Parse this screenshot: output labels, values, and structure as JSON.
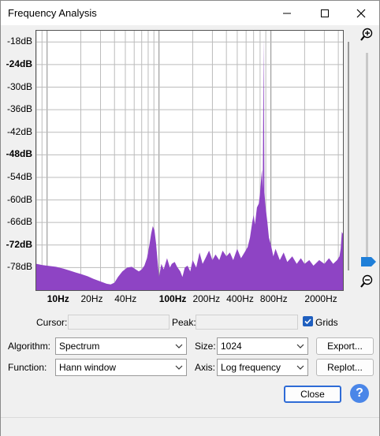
{
  "window": {
    "title": "Frequency Analysis"
  },
  "colors": {
    "spectrum_fill": "#8e44c4",
    "grid": "#bcbcbc",
    "accent": "#1f5fbf"
  },
  "chart_data": {
    "type": "area",
    "xscale": "log",
    "xlim": [
      8,
      4400
    ],
    "ylim": [
      -84,
      -15
    ],
    "y_ticks": [
      {
        "label": "-18dB",
        "value": -18,
        "bold": false
      },
      {
        "label": "-24dB",
        "value": -24,
        "bold": true
      },
      {
        "label": "-30dB",
        "value": -30,
        "bold": false
      },
      {
        "label": "-36dB",
        "value": -36,
        "bold": false
      },
      {
        "label": "-42dB",
        "value": -42,
        "bold": false
      },
      {
        "label": "-48dB",
        "value": -48,
        "bold": true
      },
      {
        "label": "-54dB",
        "value": -54,
        "bold": false
      },
      {
        "label": "-60dB",
        "value": -60,
        "bold": false
      },
      {
        "label": "-66dB",
        "value": -66,
        "bold": false
      },
      {
        "label": "-72dB",
        "value": -72,
        "bold": true
      },
      {
        "label": "-78dB",
        "value": -78,
        "bold": false
      }
    ],
    "x_ticks": [
      {
        "label": "10Hz",
        "value": 10,
        "bold": true
      },
      {
        "label": "20Hz",
        "value": 20,
        "bold": false
      },
      {
        "label": "40Hz",
        "value": 40,
        "bold": false
      },
      {
        "label": "100Hz",
        "value": 100,
        "bold": true
      },
      {
        "label": "200Hz",
        "value": 200,
        "bold": false
      },
      {
        "label": "400Hz",
        "value": 400,
        "bold": false
      },
      {
        "label": "800Hz",
        "value": 800,
        "bold": false
      },
      {
        "label": "2000Hz",
        "value": 2000,
        "bold": false
      }
    ],
    "grid": true,
    "series": [
      {
        "points": [
          [
            8,
            -77
          ],
          [
            9,
            -77.3
          ],
          [
            10,
            -77.5
          ],
          [
            12,
            -77.8
          ],
          [
            14,
            -78.3
          ],
          [
            16,
            -78.8
          ],
          [
            18,
            -79.3
          ],
          [
            20,
            -79.7
          ],
          [
            23,
            -80.3
          ],
          [
            26,
            -81
          ],
          [
            30,
            -81.7
          ],
          [
            34,
            -82.3
          ],
          [
            37,
            -82.5
          ],
          [
            40,
            -82
          ],
          [
            43,
            -80.5
          ],
          [
            47,
            -79
          ],
          [
            52,
            -78
          ],
          [
            57,
            -77.8
          ],
          [
            62,
            -78.5
          ],
          [
            66,
            -79
          ],
          [
            70,
            -78.5
          ],
          [
            74,
            -77.5
          ],
          [
            78,
            -75.5
          ],
          [
            82,
            -72
          ],
          [
            85,
            -69
          ],
          [
            88,
            -67
          ],
          [
            91,
            -68
          ],
          [
            94,
            -71.5
          ],
          [
            97,
            -76
          ],
          [
            100,
            -80.5
          ],
          [
            105,
            -77
          ],
          [
            110,
            -78.5
          ],
          [
            118,
            -75.5
          ],
          [
            125,
            -78
          ],
          [
            130,
            -77
          ],
          [
            138,
            -76.5
          ],
          [
            145,
            -77.8
          ],
          [
            155,
            -79
          ],
          [
            162,
            -80.5
          ],
          [
            170,
            -78
          ],
          [
            180,
            -77.5
          ],
          [
            190,
            -79
          ],
          [
            200,
            -76
          ],
          [
            215,
            -78
          ],
          [
            230,
            -74
          ],
          [
            245,
            -77
          ],
          [
            260,
            -75.5
          ],
          [
            280,
            -73.5
          ],
          [
            300,
            -76
          ],
          [
            320,
            -74.5
          ],
          [
            345,
            -76
          ],
          [
            370,
            -73.5
          ],
          [
            400,
            -75
          ],
          [
            430,
            -74
          ],
          [
            460,
            -76
          ],
          [
            500,
            -73
          ],
          [
            540,
            -75.5
          ],
          [
            580,
            -74
          ],
          [
            620,
            -72.5
          ],
          [
            650,
            -70
          ],
          [
            680,
            -66
          ],
          [
            700,
            -64
          ],
          [
            720,
            -66.5
          ],
          [
            750,
            -62
          ],
          [
            780,
            -61
          ],
          [
            800,
            -58
          ],
          [
            815,
            -55
          ],
          [
            830,
            -52
          ],
          [
            845,
            -57
          ],
          [
            860,
            -17
          ],
          [
            875,
            -58
          ],
          [
            890,
            -61
          ],
          [
            905,
            -63
          ],
          [
            930,
            -66
          ],
          [
            960,
            -70
          ],
          [
            1000,
            -72
          ],
          [
            1050,
            -75
          ],
          [
            1100,
            -73
          ],
          [
            1200,
            -76
          ],
          [
            1300,
            -74
          ],
          [
            1400,
            -76.5
          ],
          [
            1550,
            -75
          ],
          [
            1700,
            -77
          ],
          [
            1850,
            -75.5
          ],
          [
            2000,
            -77
          ],
          [
            2200,
            -76
          ],
          [
            2400,
            -77.5
          ],
          [
            2700,
            -76
          ],
          [
            3000,
            -77
          ],
          [
            3300,
            -75.5
          ],
          [
            3600,
            -77
          ],
          [
            3900,
            -76
          ],
          [
            4100,
            -75
          ],
          [
            4200,
            -73
          ],
          [
            4300,
            -68.5
          ],
          [
            4400,
            -69
          ]
        ]
      }
    ]
  },
  "zoom": {
    "level": 0.9
  },
  "fields": {
    "cursor_label": "Cursor:",
    "peak_label": "Peak:",
    "grids_label": "Grids",
    "grids_checked": true,
    "algorithm_label": "Algorithm:",
    "algorithm_value": "Spectrum",
    "size_label": "Size:",
    "size_value": "1024",
    "function_label": "Function:",
    "function_value": "Hann window",
    "axis_label": "Axis:",
    "axis_value": "Log frequency"
  },
  "buttons": {
    "export": "Export...",
    "replot": "Replot...",
    "close": "Close",
    "help": "?"
  },
  "icons": {
    "minimize": "minimize-icon",
    "maximize": "maximize-icon",
    "close": "close-icon",
    "zoom_in": "zoom-in-icon",
    "zoom_out": "zoom-out-icon",
    "help": "help-icon"
  }
}
